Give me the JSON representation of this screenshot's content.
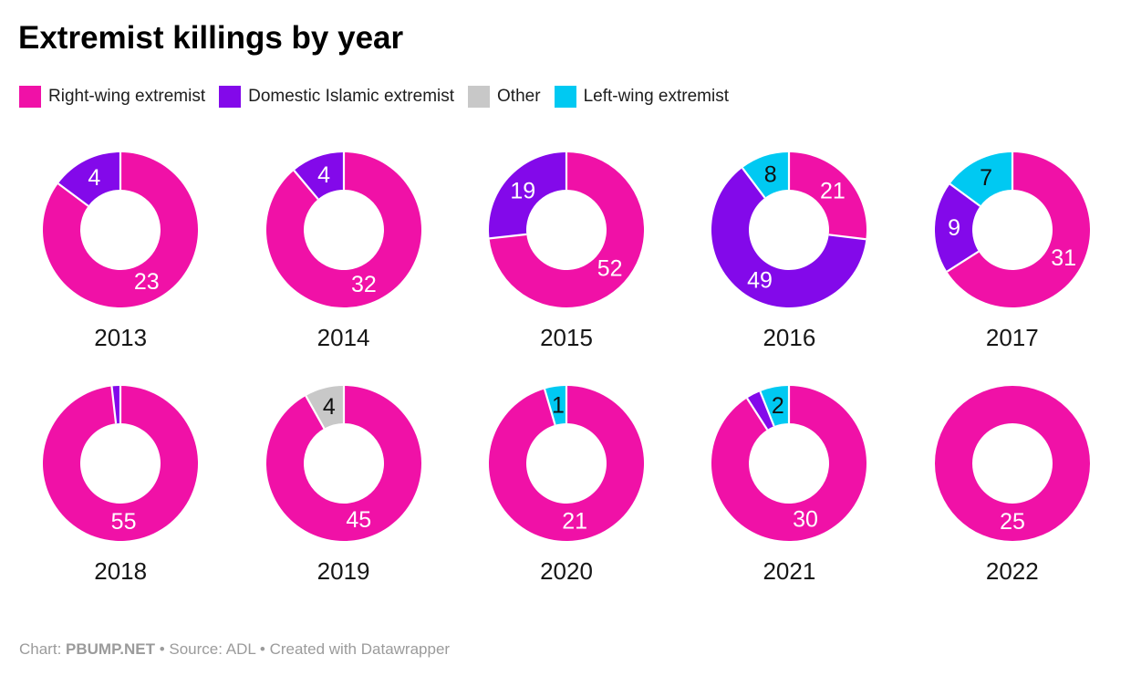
{
  "chart_data": {
    "type": "pie",
    "subtype": "donut-small-multiples",
    "title": "Extremist killings by year",
    "legend_position": "top",
    "grid_layout": "5 columns x 2 rows",
    "categories": [
      {
        "name": "Right-wing extremist",
        "color": "#f011a7",
        "value_label_color": "#ffffff"
      },
      {
        "name": "Domestic Islamic extremist",
        "color": "#8309ea",
        "value_label_color": "#ffffff"
      },
      {
        "name": "Other",
        "color": "#c8c8c8",
        "value_label_color": "#111111"
      },
      {
        "name": "Left-wing extremist",
        "color": "#00c9f2",
        "value_label_color": "#111111"
      }
    ],
    "donuts": [
      {
        "year": "2013",
        "slices": [
          {
            "category": "Right-wing extremist",
            "value": 23,
            "show_label": true
          },
          {
            "category": "Domestic Islamic extremist",
            "value": 4,
            "show_label": true
          }
        ]
      },
      {
        "year": "2014",
        "slices": [
          {
            "category": "Right-wing extremist",
            "value": 32,
            "show_label": true
          },
          {
            "category": "Domestic Islamic extremist",
            "value": 4,
            "show_label": true
          }
        ]
      },
      {
        "year": "2015",
        "slices": [
          {
            "category": "Right-wing extremist",
            "value": 52,
            "show_label": true
          },
          {
            "category": "Domestic Islamic extremist",
            "value": 19,
            "show_label": true
          }
        ]
      },
      {
        "year": "2016",
        "slices": [
          {
            "category": "Right-wing extremist",
            "value": 21,
            "show_label": true
          },
          {
            "category": "Domestic Islamic extremist",
            "value": 49,
            "show_label": true
          },
          {
            "category": "Left-wing extremist",
            "value": 8,
            "show_label": true
          }
        ]
      },
      {
        "year": "2017",
        "slices": [
          {
            "category": "Right-wing extremist",
            "value": 31,
            "show_label": true
          },
          {
            "category": "Domestic Islamic extremist",
            "value": 9,
            "show_label": true
          },
          {
            "category": "Left-wing extremist",
            "value": 7,
            "show_label": true
          }
        ]
      },
      {
        "year": "2018",
        "slices": [
          {
            "category": "Right-wing extremist",
            "value": 55,
            "show_label": true
          },
          {
            "category": "Domestic Islamic extremist",
            "value": 1,
            "show_label": false
          }
        ]
      },
      {
        "year": "2019",
        "slices": [
          {
            "category": "Right-wing extremist",
            "value": 45,
            "show_label": true
          },
          {
            "category": "Other",
            "value": 4,
            "show_label": true
          }
        ]
      },
      {
        "year": "2020",
        "slices": [
          {
            "category": "Right-wing extremist",
            "value": 21,
            "show_label": true
          },
          {
            "category": "Left-wing extremist",
            "value": 1,
            "show_label": true
          }
        ]
      },
      {
        "year": "2021",
        "slices": [
          {
            "category": "Right-wing extremist",
            "value": 30,
            "show_label": true
          },
          {
            "category": "Domestic Islamic extremist",
            "value": 1,
            "show_label": false
          },
          {
            "category": "Left-wing extremist",
            "value": 2,
            "show_label": true
          }
        ]
      },
      {
        "year": "2022",
        "slices": [
          {
            "category": "Right-wing extremist",
            "value": 25,
            "show_label": true
          }
        ]
      }
    ]
  },
  "footer": {
    "parts": [
      {
        "text": "Chart: ",
        "bold": false,
        "link": false
      },
      {
        "text": "PBUMP.NET",
        "bold": true,
        "link": true
      },
      {
        "text": " • Source: ADL • Created with ",
        "bold": false,
        "link": false
      },
      {
        "text": "Datawrapper",
        "bold": false,
        "link": true
      }
    ]
  }
}
